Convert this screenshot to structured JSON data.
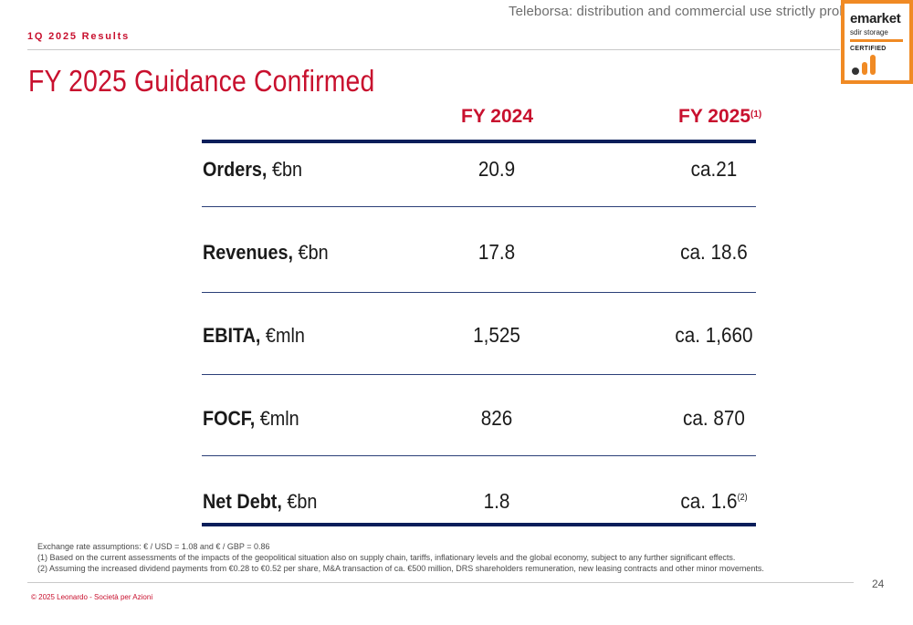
{
  "header": {
    "watermark": "Teleborsa: distribution and commercial use strictly prohibited",
    "section_label": "1Q 2025 Results",
    "title": "FY 2025 Guidance Confirmed"
  },
  "badge": {
    "brand": "emarket",
    "subtitle": "sdir storage",
    "certified": "CERTIFIED",
    "accent_color": "#f08a24"
  },
  "table": {
    "columns": [
      {
        "label": "FY 2024",
        "note": ""
      },
      {
        "label": "FY 2025",
        "note": "(1)"
      }
    ],
    "rows": [
      {
        "label": "Orders,",
        "unit": " €bn",
        "fy2024": "20.9",
        "fy2025": "ca.21",
        "note": ""
      },
      {
        "label": "Revenues,",
        "unit": " €bn",
        "fy2024": "17.8",
        "fy2025": "ca. 18.6",
        "note": ""
      },
      {
        "label": "EBITA,",
        "unit": " €mln",
        "fy2024": "1,525",
        "fy2025": "ca. 1,660",
        "note": ""
      },
      {
        "label": "FOCF,",
        "unit": " €mln",
        "fy2024": "826",
        "fy2025": "ca. 870",
        "note": ""
      },
      {
        "label": "Net Debt,",
        "unit": " €bn",
        "fy2024": "1.8",
        "fy2025": "ca. 1.6",
        "note": "(2)"
      }
    ]
  },
  "notes": [
    "Exchange rate assumptions: € / USD = 1.08 and € / GBP = 0.86",
    "(1) Based on the current assessments of the impacts of the geopolitical situation also on supply chain, tariffs, inflationary levels and the global economy, subject to any further significant effects.",
    "(2) Assuming the increased dividend payments from €0.28 to €0.52 per share, M&A transaction of ca. €500 million, DRS shareholders remuneration, new leasing contracts and other minor movements."
  ],
  "footer": {
    "page_number": "24",
    "copyright": "© 2025 Leonardo - Società per Azioni"
  },
  "colors": {
    "accent_red": "#c8102e",
    "navy_rule": "#0a1e5a"
  }
}
